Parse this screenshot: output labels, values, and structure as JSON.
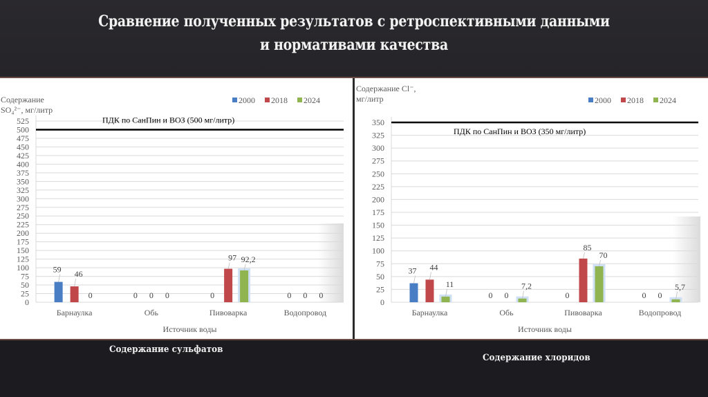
{
  "slide": {
    "title_line1": "Сравнение полученных результатов с ретроспективными данными",
    "title_line2": "и нормативами качества",
    "caption_left": "Содержание сульфатов",
    "caption_right": "Содержание хлоридов"
  },
  "colors": {
    "2000": "#4a7ec4",
    "2018": "#c0474a",
    "2024": "#8fb450",
    "limit_line": "#000000",
    "grid": "#d9d9d9",
    "text": "#595959"
  },
  "chart_data": [
    {
      "type": "bar",
      "title": "Содержание сульфатов",
      "ylabel_line1": "Содержание",
      "ylabel_line2": "SO₄²⁻, мг/литр",
      "xlabel": "Источник воды",
      "categories": [
        "Барнаулка",
        "Обь",
        "Пивоварка",
        "Водопровод"
      ],
      "series": [
        {
          "name": "2000",
          "values": [
            59,
            0,
            0,
            0
          ],
          "labels": [
            "59",
            "0",
            "0",
            "0"
          ]
        },
        {
          "name": "2018",
          "values": [
            46,
            0,
            97,
            0
          ],
          "labels": [
            "46",
            "0",
            "97",
            "0"
          ]
        },
        {
          "name": "2024",
          "values": [
            0,
            0,
            92.2,
            0
          ],
          "labels": [
            "0",
            "0",
            "92,2",
            "0"
          ]
        }
      ],
      "ylim": [
        0,
        525
      ],
      "yticks": [
        0,
        25,
        50,
        75,
        100,
        125,
        150,
        175,
        200,
        225,
        250,
        275,
        300,
        325,
        350,
        375,
        400,
        425,
        450,
        475,
        500,
        525
      ],
      "limit": {
        "value": 500,
        "label": "ПДК по СанПин и ВОЗ (500 мг/литр)"
      },
      "legend": [
        "2000",
        "2018",
        "2024"
      ],
      "legend_position": "top-right",
      "grid": true
    },
    {
      "type": "bar",
      "title": "Содержание хлоридов",
      "ylabel_line1": "Содержание Cl⁻,",
      "ylabel_line2": "мг/литр",
      "xlabel": "Источник воды",
      "categories": [
        "Барнаулка",
        "Обь",
        "Пивоварка",
        "Водопровод"
      ],
      "series": [
        {
          "name": "2000",
          "values": [
            37,
            0,
            0,
            0
          ],
          "labels": [
            "37",
            "0",
            "0",
            "0"
          ]
        },
        {
          "name": "2018",
          "values": [
            44,
            0,
            85,
            0
          ],
          "labels": [
            "44",
            "0",
            "85",
            "0"
          ]
        },
        {
          "name": "2024",
          "values": [
            11,
            7.2,
            70,
            5.7
          ],
          "labels": [
            "11",
            "7,2",
            "70",
            "5,7"
          ]
        }
      ],
      "ylim": [
        0,
        350
      ],
      "yticks": [
        0,
        25,
        50,
        75,
        100,
        125,
        150,
        175,
        200,
        225,
        250,
        275,
        300,
        325,
        350
      ],
      "limit": {
        "value": 350,
        "label": "ПДК по СанПин и ВОЗ (350 мг/литр)"
      },
      "legend": [
        "2000",
        "2018",
        "2024"
      ],
      "legend_position": "top-right",
      "grid": true
    }
  ]
}
